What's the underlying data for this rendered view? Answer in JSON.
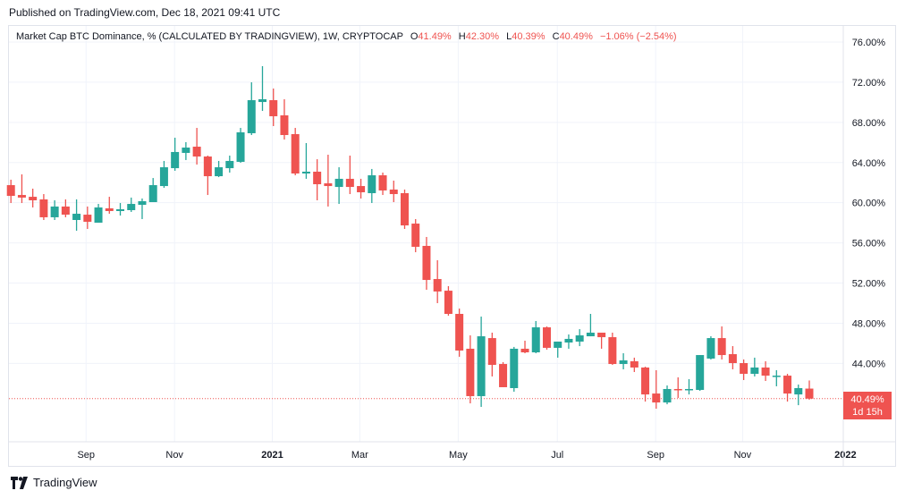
{
  "header": {
    "published": "Published on TradingView.com, Dec 18, 2021 09:41 UTC"
  },
  "legend": {
    "title": "Market Cap BTC Dominance, % (CALCULATED BY TRADINGVIEW), 1W, CRYPTOCAP",
    "o_label": "O",
    "o": "41.49%",
    "h_label": "H",
    "h": "42.30%",
    "l_label": "L",
    "l": "40.39%",
    "c_label": "C",
    "c": "40.49%",
    "change": "−1.06% (−2.54%)"
  },
  "price_tag": {
    "price": "40.49%",
    "countdown": "1d 15h"
  },
  "footer": {
    "brand": "TradingView"
  },
  "colors": {
    "up": "#26a69a",
    "down": "#ef5350",
    "grid": "#f0f3fa",
    "axis_text": "#131722"
  },
  "chart_data": {
    "type": "candlestick",
    "title": "Market Cap BTC Dominance, % (CALCULATED BY TRADINGVIEW), 1W, CRYPTOCAP",
    "ylim": [
      34.8,
      77.2
    ],
    "last_price": 40.49,
    "y_ticks": [
      "76.00%",
      "72.00%",
      "68.00%",
      "64.00%",
      "60.00%",
      "56.00%",
      "52.00%",
      "48.00%",
      "44.00%"
    ],
    "y_tick_values": [
      76,
      72,
      68,
      64,
      60,
      56,
      52,
      48,
      44
    ],
    "x_ticks": [
      {
        "label": "Sep",
        "week": 6.87,
        "bold": false
      },
      {
        "label": "Nov",
        "week": 14.96,
        "bold": false
      },
      {
        "label": "2021",
        "week": 23.9,
        "bold": true
      },
      {
        "label": "Mar",
        "week": 31.9,
        "bold": false
      },
      {
        "label": "May",
        "week": 40.9,
        "bold": false
      },
      {
        "label": "Jul",
        "week": 49.96,
        "bold": false
      },
      {
        "label": "Sep",
        "week": 58.95,
        "bold": false
      },
      {
        "label": "Nov",
        "week": 66.9,
        "bold": false
      },
      {
        "label": "2022",
        "week": 76.3,
        "bold": true
      }
    ],
    "ohlc": [
      [
        61.75,
        62.29,
        59.97,
        60.68
      ],
      [
        60.77,
        62.82,
        59.97,
        60.51
      ],
      [
        60.59,
        61.4,
        59.53,
        60.24
      ],
      [
        60.33,
        60.86,
        58.28,
        58.55
      ],
      [
        58.55,
        60.24,
        58.28,
        59.62
      ],
      [
        59.62,
        60.33,
        58.55,
        58.81
      ],
      [
        58.28,
        60.33,
        57.21,
        58.9
      ],
      [
        58.81,
        59.62,
        57.39,
        58.1
      ],
      [
        58.01,
        59.88,
        58.01,
        59.53
      ],
      [
        59.44,
        60.59,
        58.9,
        59.17
      ],
      [
        59.17,
        59.97,
        58.72,
        59.35
      ],
      [
        59.26,
        60.51,
        59.08,
        59.88
      ],
      [
        59.79,
        60.42,
        58.37,
        60.15
      ],
      [
        60.06,
        62.46,
        60.06,
        61.75
      ],
      [
        61.66,
        64.16,
        61.48,
        63.53
      ],
      [
        63.44,
        66.47,
        63.18,
        65.05
      ],
      [
        64.96,
        66.03,
        64.25,
        65.49
      ],
      [
        65.58,
        67.45,
        63.8,
        64.6
      ],
      [
        64.6,
        64.69,
        60.77,
        62.64
      ],
      [
        62.64,
        64.16,
        62.55,
        63.53
      ],
      [
        63.44,
        64.69,
        63.0,
        64.16
      ],
      [
        64.07,
        67.45,
        63.98,
        67.01
      ],
      [
        66.92,
        71.99,
        66.74,
        70.21
      ],
      [
        70.03,
        73.6,
        69.14,
        70.3
      ],
      [
        70.21,
        71.37,
        67.63,
        68.61
      ],
      [
        68.7,
        70.3,
        66.29,
        66.74
      ],
      [
        66.83,
        67.45,
        62.73,
        62.91
      ],
      [
        62.91,
        65.94,
        62.38,
        63.09
      ],
      [
        63.09,
        64.33,
        60.24,
        61.84
      ],
      [
        61.93,
        64.78,
        59.62,
        61.66
      ],
      [
        61.57,
        63.53,
        59.88,
        62.38
      ],
      [
        62.38,
        64.69,
        60.86,
        61.57
      ],
      [
        61.66,
        62.38,
        60.42,
        61.04
      ],
      [
        60.95,
        63.36,
        59.97,
        62.73
      ],
      [
        62.73,
        63.0,
        60.77,
        61.22
      ],
      [
        61.31,
        62.2,
        60.06,
        60.86
      ],
      [
        60.95,
        61.31,
        57.39,
        57.74
      ],
      [
        57.92,
        58.37,
        55.07,
        55.61
      ],
      [
        55.7,
        56.59,
        51.33,
        52.31
      ],
      [
        52.4,
        54.27,
        50.0,
        51.16
      ],
      [
        51.24,
        51.69,
        48.75,
        48.93
      ],
      [
        48.93,
        49.46,
        44.66,
        45.28
      ],
      [
        45.46,
        46.79,
        40.02,
        40.74
      ],
      [
        40.74,
        48.66,
        39.67,
        46.7
      ],
      [
        46.52,
        47.06,
        42.7,
        43.85
      ],
      [
        43.94,
        44.12,
        41.63,
        41.63
      ],
      [
        41.54,
        45.64,
        41.18,
        45.46
      ],
      [
        45.46,
        46.26,
        45.01,
        45.1
      ],
      [
        45.1,
        48.22,
        45.01,
        47.59
      ],
      [
        47.59,
        47.68,
        45.37,
        45.55
      ],
      [
        45.55,
        46.17,
        44.57,
        46.17
      ],
      [
        46.08,
        46.88,
        45.46,
        46.44
      ],
      [
        46.17,
        47.41,
        45.72,
        46.79
      ],
      [
        46.7,
        48.93,
        46.7,
        47.06
      ],
      [
        47.06,
        47.06,
        45.46,
        46.61
      ],
      [
        46.61,
        47.06,
        43.85,
        43.94
      ],
      [
        43.94,
        45.01,
        43.41,
        44.3
      ],
      [
        44.21,
        44.57,
        43.14,
        43.59
      ],
      [
        43.59,
        43.67,
        40.2,
        40.91
      ],
      [
        41.0,
        43.32,
        39.49,
        40.11
      ],
      [
        40.11,
        41.8,
        39.93,
        41.45
      ],
      [
        41.45,
        42.61,
        40.56,
        41.36
      ],
      [
        41.36,
        42.43,
        40.91,
        41.45
      ],
      [
        41.36,
        44.83,
        41.27,
        44.83
      ],
      [
        44.48,
        46.7,
        44.39,
        46.52
      ],
      [
        46.52,
        47.68,
        44.39,
        44.83
      ],
      [
        44.92,
        45.72,
        43.41,
        44.03
      ],
      [
        44.03,
        44.39,
        42.34,
        42.96
      ],
      [
        42.96,
        44.57,
        42.7,
        43.59
      ],
      [
        43.59,
        44.21,
        42.25,
        42.78
      ],
      [
        42.7,
        43.32,
        41.72,
        42.78
      ],
      [
        42.78,
        42.96,
        40.2,
        41.0
      ],
      [
        40.91,
        41.89,
        39.84,
        41.54
      ],
      [
        41.49,
        42.3,
        40.39,
        40.49
      ]
    ]
  }
}
